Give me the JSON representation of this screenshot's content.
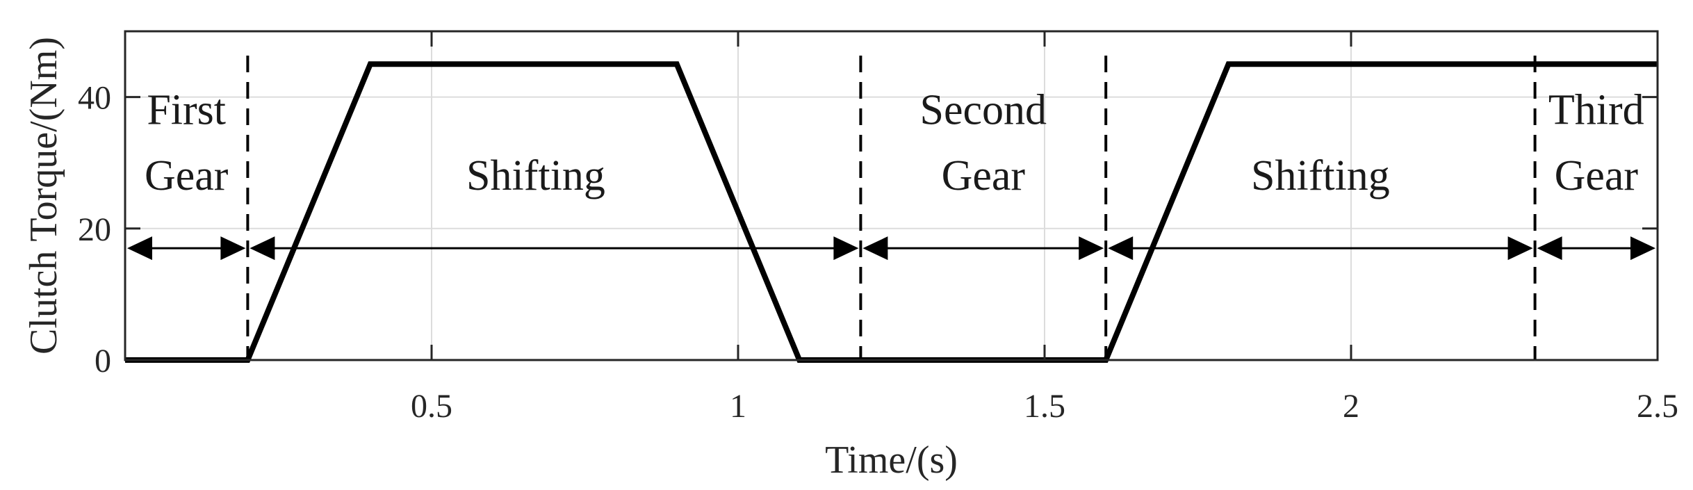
{
  "chart_data": {
    "type": "line",
    "title": "",
    "xlabel": "Time/(s)",
    "ylabel": "Clutch Torque/(Nm)",
    "xlim": [
      0,
      2.5
    ],
    "ylim": [
      0,
      50
    ],
    "grid": true,
    "x_ticks": [
      0.5,
      1,
      1.5,
      2,
      2.5
    ],
    "x_tick_labels": [
      "0.5",
      "1",
      "1.5",
      "2",
      "2.5"
    ],
    "y_ticks": [
      0,
      20,
      40
    ],
    "y_tick_labels": [
      "0",
      "20",
      "40"
    ],
    "series": [
      {
        "x": [
          0,
          0.2,
          0.4,
          0.9,
          1.1,
          1.6,
          1.8,
          2.5
        ],
        "y": [
          0,
          0,
          45,
          45,
          0,
          0,
          45,
          45
        ],
        "color": "#000000"
      }
    ],
    "dividers": [
      0.2,
      1.2,
      1.6,
      2.3
    ],
    "arrow_y": 17,
    "arrow_segments": [
      [
        0,
        0.2
      ],
      [
        0.2,
        1.2
      ],
      [
        1.2,
        1.6
      ],
      [
        1.6,
        2.3
      ],
      [
        2.3,
        2.5
      ]
    ],
    "annotations": [
      {
        "lines": [
          "First",
          "Gear"
        ],
        "x": 0.1,
        "y": [
          38,
          28
        ]
      },
      {
        "lines": [
          "Shifting"
        ],
        "x": 0.67,
        "y": [
          28
        ]
      },
      {
        "lines": [
          "Second",
          "Gear"
        ],
        "x": 1.4,
        "y": [
          38,
          28
        ]
      },
      {
        "lines": [
          "Shifting"
        ],
        "x": 1.95,
        "y": [
          28
        ]
      },
      {
        "lines": [
          "Third",
          "Gear"
        ],
        "x": 2.4,
        "y": [
          38,
          28
        ]
      }
    ]
  }
}
